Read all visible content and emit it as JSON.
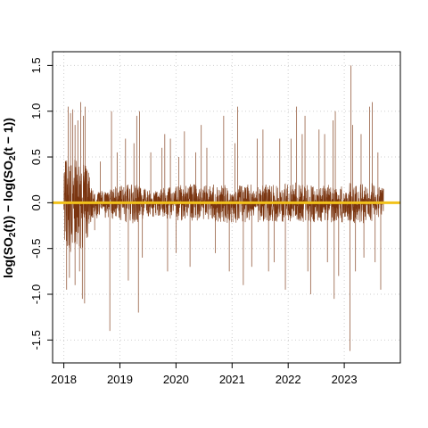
{
  "chart_data": {
    "type": "line",
    "title": "",
    "xlabel": "",
    "ylabel": "log(SO2(t)) − log(SO2(t − 1))",
    "ylabel_parts": {
      "prefix": "log(SO",
      "sub1": "2",
      "mid": "(t)) − log(SO",
      "sub2": "2",
      "suffix": "(t − 1))"
    },
    "xlim": [
      2017.8,
      2024.0
    ],
    "ylim": [
      -1.75,
      1.65
    ],
    "x_ticks": [
      {
        "value": 2018,
        "label": "2018"
      },
      {
        "value": 2019,
        "label": "2019"
      },
      {
        "value": 2020,
        "label": "2020"
      },
      {
        "value": 2021,
        "label": "2021"
      },
      {
        "value": 2022,
        "label": "2022"
      },
      {
        "value": 2023,
        "label": "2023"
      }
    ],
    "y_ticks": [
      {
        "value": -1.5,
        "label": "-1.5"
      },
      {
        "value": -1.0,
        "label": "-1.0"
      },
      {
        "value": -0.5,
        "label": "-0.5"
      },
      {
        "value": 0.0,
        "label": "0.0"
      },
      {
        "value": 0.5,
        "label": "0.5"
      },
      {
        "value": 1.0,
        "label": "1.0"
      },
      {
        "value": 1.5,
        "label": "1.5"
      }
    ],
    "grid": true,
    "series": [
      {
        "color": "#7a3510",
        "x_start": 2018.0,
        "x_end": 2023.7,
        "envelope": [
          {
            "x": 2018.0,
            "upper": 0.42,
            "lower": -0.45
          },
          {
            "x": 2018.2,
            "upper": 0.38,
            "lower": -0.42
          },
          {
            "x": 2018.42,
            "upper": 0.34,
            "lower": -0.38
          },
          {
            "x": 2018.5,
            "upper": 0.12,
            "lower": -0.14
          },
          {
            "x": 2018.8,
            "upper": 0.11,
            "lower": -0.13
          },
          {
            "x": 2019.0,
            "upper": 0.16,
            "lower": -0.17
          },
          {
            "x": 2019.3,
            "upper": 0.18,
            "lower": -0.19
          },
          {
            "x": 2019.5,
            "upper": 0.11,
            "lower": -0.12
          },
          {
            "x": 2019.8,
            "upper": 0.13,
            "lower": -0.14
          },
          {
            "x": 2020.2,
            "upper": 0.17,
            "lower": -0.17
          },
          {
            "x": 2020.5,
            "upper": 0.15,
            "lower": -0.16
          },
          {
            "x": 2020.9,
            "upper": 0.18,
            "lower": -0.18
          },
          {
            "x": 2021.3,
            "upper": 0.16,
            "lower": -0.17
          },
          {
            "x": 2021.8,
            "upper": 0.17,
            "lower": -0.17
          },
          {
            "x": 2022.2,
            "upper": 0.18,
            "lower": -0.18
          },
          {
            "x": 2022.6,
            "upper": 0.15,
            "lower": -0.17
          },
          {
            "x": 2023.0,
            "upper": 0.17,
            "lower": -0.18
          },
          {
            "x": 2023.4,
            "upper": 0.18,
            "lower": -0.18
          },
          {
            "x": 2023.7,
            "upper": 0.15,
            "lower": -0.15
          }
        ],
        "spikes": [
          {
            "x": 2018.08,
            "y": 1.05
          },
          {
            "x": 2018.12,
            "y": 0.98
          },
          {
            "x": 2018.16,
            "y": 1.02
          },
          {
            "x": 2018.2,
            "y": 0.85
          },
          {
            "x": 2018.25,
            "y": 0.9
          },
          {
            "x": 2018.3,
            "y": 1.1
          },
          {
            "x": 2018.35,
            "y": 0.95
          },
          {
            "x": 2018.38,
            "y": 1.05
          },
          {
            "x": 2018.05,
            "y": -0.95
          },
          {
            "x": 2018.1,
            "y": -0.82
          },
          {
            "x": 2018.2,
            "y": -0.9
          },
          {
            "x": 2018.28,
            "y": -0.75
          },
          {
            "x": 2018.33,
            "y": -1.05
          },
          {
            "x": 2018.37,
            "y": -1.1
          },
          {
            "x": 2018.55,
            "y": -0.3
          },
          {
            "x": 2018.65,
            "y": 0.45
          },
          {
            "x": 2018.82,
            "y": -1.4
          },
          {
            "x": 2018.85,
            "y": 1.0
          },
          {
            "x": 2018.95,
            "y": 0.55
          },
          {
            "x": 2019.1,
            "y": 0.7
          },
          {
            "x": 2019.15,
            "y": -0.85
          },
          {
            "x": 2019.25,
            "y": 0.65
          },
          {
            "x": 2019.3,
            "y": 0.95
          },
          {
            "x": 2019.33,
            "y": -1.2
          },
          {
            "x": 2019.35,
            "y": 1.0
          },
          {
            "x": 2019.4,
            "y": -0.6
          },
          {
            "x": 2019.55,
            "y": 0.55
          },
          {
            "x": 2019.75,
            "y": 0.6
          },
          {
            "x": 2019.8,
            "y": 0.75
          },
          {
            "x": 2019.85,
            "y": -0.75
          },
          {
            "x": 2019.9,
            "y": 0.7
          },
          {
            "x": 2020.0,
            "y": -0.55
          },
          {
            "x": 2020.05,
            "y": 0.5
          },
          {
            "x": 2020.15,
            "y": 0.78
          },
          {
            "x": 2020.25,
            "y": -0.7
          },
          {
            "x": 2020.35,
            "y": 0.55
          },
          {
            "x": 2020.45,
            "y": 0.85
          },
          {
            "x": 2020.55,
            "y": 0.6
          },
          {
            "x": 2020.7,
            "y": -0.55
          },
          {
            "x": 2020.85,
            "y": 0.95
          },
          {
            "x": 2020.95,
            "y": -0.75
          },
          {
            "x": 2021.05,
            "y": 0.65
          },
          {
            "x": 2021.1,
            "y": 1.05
          },
          {
            "x": 2021.2,
            "y": -0.9
          },
          {
            "x": 2021.35,
            "y": -0.7
          },
          {
            "x": 2021.45,
            "y": 0.7
          },
          {
            "x": 2021.55,
            "y": 0.8
          },
          {
            "x": 2021.65,
            "y": -0.75
          },
          {
            "x": 2021.75,
            "y": -0.65
          },
          {
            "x": 2021.85,
            "y": 0.7
          },
          {
            "x": 2021.95,
            "y": -0.95
          },
          {
            "x": 2022.05,
            "y": 0.7
          },
          {
            "x": 2022.15,
            "y": 1.05
          },
          {
            "x": 2022.25,
            "y": 0.75
          },
          {
            "x": 2022.3,
            "y": 0.95
          },
          {
            "x": 2022.35,
            "y": -0.75
          },
          {
            "x": 2022.4,
            "y": -1.0
          },
          {
            "x": 2022.55,
            "y": 0.8
          },
          {
            "x": 2022.65,
            "y": 0.75
          },
          {
            "x": 2022.7,
            "y": -0.65
          },
          {
            "x": 2022.8,
            "y": 0.9
          },
          {
            "x": 2022.82,
            "y": -1.05
          },
          {
            "x": 2022.84,
            "y": 1.0
          },
          {
            "x": 2022.9,
            "y": -0.8
          },
          {
            "x": 2023.1,
            "y": -1.62
          },
          {
            "x": 2023.12,
            "y": 1.5
          },
          {
            "x": 2023.15,
            "y": 0.85
          },
          {
            "x": 2023.2,
            "y": -0.75
          },
          {
            "x": 2023.3,
            "y": 0.75
          },
          {
            "x": 2023.35,
            "y": -0.6
          },
          {
            "x": 2023.45,
            "y": 1.05
          },
          {
            "x": 2023.5,
            "y": 1.1
          },
          {
            "x": 2023.55,
            "y": -0.65
          },
          {
            "x": 2023.6,
            "y": 0.55
          },
          {
            "x": 2023.65,
            "y": -0.95
          }
        ]
      }
    ],
    "reference_line": {
      "y": 0.0,
      "color": "#f2c21b"
    },
    "colors": {
      "grid": "#cfcfcf",
      "axis": "#000000",
      "background": "#ffffff"
    }
  }
}
